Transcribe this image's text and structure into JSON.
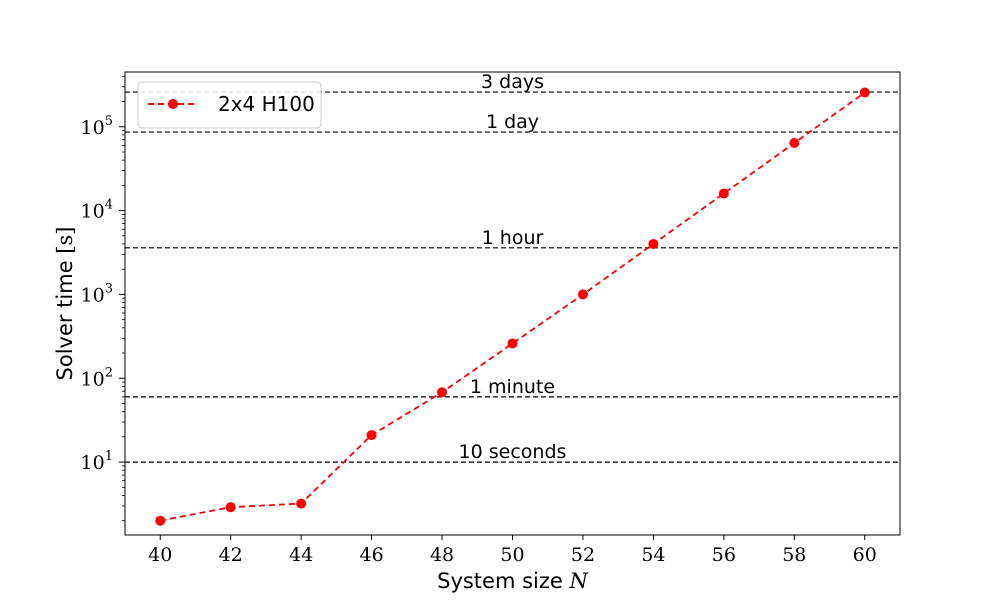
{
  "chart_data": {
    "type": "line",
    "title": "",
    "xlabel": "System size",
    "xlabel_symbol": "N",
    "ylabel": "Solver time",
    "ylabel_unit": "[s]",
    "xlim": [
      39,
      61
    ],
    "ylim": [
      1.35,
      450000
    ],
    "yscale": "log",
    "grid": false,
    "legend_position": "upper-left",
    "x_ticks": [
      40,
      42,
      44,
      46,
      48,
      50,
      52,
      54,
      56,
      58,
      60
    ],
    "y_ticks": [
      {
        "base": "10",
        "exp": "1",
        "value": 10
      },
      {
        "base": "10",
        "exp": "2",
        "value": 100
      },
      {
        "base": "10",
        "exp": "3",
        "value": 1000
      },
      {
        "base": "10",
        "exp": "4",
        "value": 10000
      },
      {
        "base": "10",
        "exp": "5",
        "value": 100000
      }
    ],
    "series": [
      {
        "name": "2x4 H100",
        "color": "#ff0000",
        "line_style": "dashed",
        "marker": "circle",
        "x": [
          40,
          42,
          44,
          46,
          48,
          50,
          52,
          54,
          56,
          58,
          60
        ],
        "y": [
          2.0,
          2.9,
          3.2,
          21,
          68,
          260,
          1000,
          4000,
          16000,
          64000,
          256000
        ]
      }
    ],
    "reference_lines": [
      {
        "label": "10 seconds",
        "value": 10
      },
      {
        "label": "1 minute",
        "value": 60
      },
      {
        "label": "1 hour",
        "value": 3600
      },
      {
        "label": "1 day",
        "value": 86400
      },
      {
        "label": "3 days",
        "value": 259200
      }
    ],
    "reference_line_color": "#000000"
  }
}
